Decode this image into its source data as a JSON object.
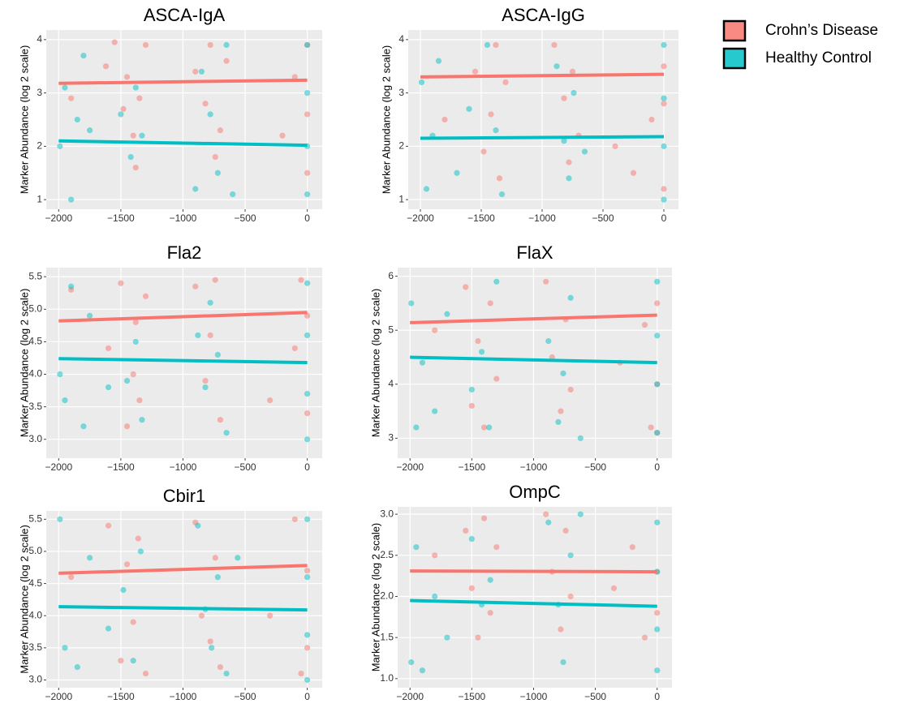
{
  "chart_data": [
    {
      "type": "scatter",
      "title": "ASCA-IgA",
      "y_label": "Marker Abundance (log 2 scale)",
      "xlim": [
        -2100,
        120
      ],
      "ylim": [
        0.82,
        4.18
      ],
      "xticks": [
        {
          "value": -2000,
          "label": "−2000"
        },
        {
          "value": -1500,
          "label": "−1500"
        },
        {
          "value": -1000,
          "label": "−1000"
        },
        {
          "value": -500,
          "label": "−500"
        },
        0
      ],
      "yticks": [
        1,
        2,
        3,
        4
      ],
      "grid": true,
      "series": [
        {
          "name": "Crohn’s Disease",
          "color": "#f8766d",
          "x": [
            -1900,
            -1620,
            -1550,
            -1480,
            -1450,
            -1400,
            -1380,
            -1350,
            -1300,
            -900,
            -820,
            -780,
            -740,
            -700,
            -650,
            -200,
            -100,
            0,
            0,
            0
          ],
          "values": [
            2.9,
            3.5,
            3.95,
            2.7,
            3.3,
            2.2,
            1.6,
            2.9,
            3.9,
            3.4,
            2.8,
            3.9,
            1.8,
            2.3,
            3.6,
            2.2,
            3.3,
            3.9,
            2.6,
            1.5
          ],
          "trend": {
            "x": [
              -2000,
              0
            ],
            "values": [
              3.18,
              3.24
            ]
          }
        },
        {
          "name": "Healthy Control",
          "color": "#00bfc4",
          "x": [
            -1990,
            -1950,
            -1900,
            -1850,
            -1800,
            -1750,
            -1500,
            -1420,
            -1380,
            -1330,
            -900,
            -850,
            -780,
            -720,
            -650,
            -600,
            0,
            0,
            0,
            0
          ],
          "values": [
            2.0,
            3.1,
            1.0,
            2.5,
            3.7,
            2.3,
            2.6,
            1.8,
            3.1,
            2.2,
            1.2,
            3.4,
            2.6,
            1.5,
            3.9,
            1.1,
            3.9,
            3.0,
            2.0,
            1.1
          ],
          "trend": {
            "x": [
              -2000,
              0
            ],
            "values": [
              2.1,
              2.02
            ]
          }
        }
      ]
    },
    {
      "type": "scatter",
      "title": "ASCA-IgG",
      "y_label": "Marker Abundance (log 2 scale)",
      "xlim": [
        -2100,
        120
      ],
      "ylim": [
        0.82,
        4.18
      ],
      "xticks": [
        {
          "value": -2000,
          "label": "−2000"
        },
        {
          "value": -1500,
          "label": "−1500"
        },
        {
          "value": -1000,
          "label": "−1000"
        },
        {
          "value": -500,
          "label": "−500"
        },
        0
      ],
      "yticks": [
        1,
        2,
        3,
        4
      ],
      "grid": true,
      "series": [
        {
          "name": "Crohn’s Disease",
          "color": "#f8766d",
          "x": [
            -1800,
            -1550,
            -1480,
            -1420,
            -1380,
            -1350,
            -1300,
            -900,
            -820,
            -780,
            -750,
            -700,
            -400,
            -250,
            -100,
            0,
            0,
            0
          ],
          "values": [
            2.5,
            3.4,
            1.9,
            2.6,
            3.9,
            1.4,
            3.2,
            3.9,
            2.9,
            1.7,
            3.4,
            2.2,
            2.0,
            1.5,
            2.5,
            3.5,
            2.8,
            1.2
          ],
          "trend": {
            "x": [
              -2000,
              0
            ],
            "values": [
              3.3,
              3.35
            ]
          }
        },
        {
          "name": "Healthy Control",
          "color": "#00bfc4",
          "x": [
            -1990,
            -1950,
            -1900,
            -1850,
            -1700,
            -1600,
            -1450,
            -1380,
            -1330,
            -880,
            -820,
            -780,
            -740,
            -650,
            0,
            0,
            0,
            0
          ],
          "values": [
            3.2,
            1.2,
            2.2,
            3.6,
            1.5,
            2.7,
            3.9,
            2.3,
            1.1,
            3.5,
            2.1,
            1.4,
            3.0,
            1.9,
            3.9,
            2.9,
            2.0,
            1.0
          ],
          "trend": {
            "x": [
              -2000,
              0
            ],
            "values": [
              2.15,
              2.18
            ]
          }
        }
      ]
    },
    {
      "type": "scatter",
      "title": "Fla2",
      "y_label": "Marker Abundance (log 2 scale)",
      "xlim": [
        -2100,
        120
      ],
      "ylim": [
        2.71,
        5.64
      ],
      "xticks": [
        {
          "value": -2000,
          "label": "−2000"
        },
        {
          "value": -1500,
          "label": "−1500"
        },
        {
          "value": -1000,
          "label": "−1000"
        },
        {
          "value": -500,
          "label": "−500"
        },
        0
      ],
      "yticks": [
        {
          "value": 3,
          "label": "3.0"
        },
        3.5,
        {
          "value": 4,
          "label": "4.0"
        },
        4.5,
        {
          "value": 5,
          "label": "5.0"
        },
        5.5
      ],
      "grid": true,
      "series": [
        {
          "name": "Crohn’s Disease",
          "color": "#f8766d",
          "x": [
            -1900,
            -1600,
            -1500,
            -1450,
            -1400,
            -1380,
            -1350,
            -1300,
            -900,
            -820,
            -780,
            -740,
            -700,
            -300,
            -100,
            -50,
            0,
            0
          ],
          "values": [
            5.3,
            4.4,
            5.4,
            3.2,
            4.0,
            4.8,
            3.6,
            5.2,
            5.35,
            3.9,
            4.6,
            5.45,
            3.3,
            3.6,
            4.4,
            5.45,
            4.9,
            3.4
          ],
          "trend": {
            "x": [
              -2000,
              0
            ],
            "values": [
              4.82,
              4.95
            ]
          }
        },
        {
          "name": "Healthy Control",
          "color": "#00bfc4",
          "x": [
            -1990,
            -1950,
            -1900,
            -1800,
            -1750,
            -1600,
            -1450,
            -1380,
            -1330,
            -880,
            -820,
            -780,
            -720,
            -650,
            0,
            0,
            0,
            0
          ],
          "values": [
            4.0,
            3.6,
            5.35,
            3.2,
            4.9,
            3.8,
            3.9,
            4.5,
            3.3,
            4.6,
            3.8,
            5.1,
            4.3,
            3.1,
            5.4,
            4.6,
            3.7,
            3.0
          ],
          "trend": {
            "x": [
              -2000,
              0
            ],
            "values": [
              4.24,
              4.18
            ]
          }
        }
      ]
    },
    {
      "type": "scatter",
      "title": "FlaX",
      "y_label": "Marker Abundance (log 2 scale)",
      "xlim": [
        -2100,
        120
      ],
      "ylim": [
        2.63,
        6.16
      ],
      "xticks": [
        {
          "value": -2000,
          "label": "−2000"
        },
        {
          "value": -1500,
          "label": "−1500"
        },
        {
          "value": -1000,
          "label": "−1000"
        },
        {
          "value": -500,
          "label": "−500"
        },
        0
      ],
      "yticks": [
        3,
        4,
        5,
        6
      ],
      "grid": true,
      "series": [
        {
          "name": "Crohn’s Disease",
          "color": "#f8766d",
          "x": [
            -1800,
            -1550,
            -1500,
            -1450,
            -1400,
            -1350,
            -1300,
            -900,
            -850,
            -780,
            -740,
            -700,
            -300,
            -100,
            -50,
            0,
            0,
            0
          ],
          "values": [
            5.0,
            5.8,
            3.6,
            4.8,
            3.2,
            5.5,
            4.1,
            5.9,
            4.5,
            3.5,
            5.2,
            3.9,
            4.4,
            5.1,
            3.2,
            5.5,
            4.0,
            3.1
          ],
          "trend": {
            "x": [
              -2000,
              0
            ],
            "values": [
              5.14,
              5.28
            ]
          }
        },
        {
          "name": "Healthy Control",
          "color": "#00bfc4",
          "x": [
            -1990,
            -1950,
            -1900,
            -1800,
            -1700,
            -1500,
            -1420,
            -1360,
            -1300,
            -880,
            -800,
            -760,
            -700,
            -620,
            0,
            0,
            0,
            0
          ],
          "values": [
            5.5,
            3.2,
            4.4,
            3.5,
            5.3,
            3.9,
            4.6,
            3.2,
            5.9,
            4.8,
            3.3,
            4.2,
            5.6,
            3.0,
            5.9,
            4.9,
            4.0,
            3.1
          ],
          "trend": {
            "x": [
              -2000,
              0
            ],
            "values": [
              4.5,
              4.4
            ]
          }
        }
      ]
    },
    {
      "type": "scatter",
      "title": "Cbir1",
      "y_label": "Marker Abundance (log 2 scale)",
      "xlim": [
        -2100,
        120
      ],
      "ylim": [
        2.88,
        5.63
      ],
      "xticks": [
        {
          "value": -2000,
          "label": "−2000"
        },
        {
          "value": -1500,
          "label": "−1500"
        },
        {
          "value": -1000,
          "label": "−1000"
        },
        {
          "value": -500,
          "label": "−500"
        },
        0
      ],
      "yticks": [
        {
          "value": 3,
          "label": "3.0"
        },
        3.5,
        {
          "value": 4,
          "label": "4.0"
        },
        4.5,
        {
          "value": 5,
          "label": "5.0"
        },
        5.5
      ],
      "grid": true,
      "series": [
        {
          "name": "Crohn’s Disease",
          "color": "#f8766d",
          "x": [
            -1900,
            -1600,
            -1500,
            -1450,
            -1400,
            -1360,
            -1300,
            -900,
            -850,
            -780,
            -740,
            -700,
            -300,
            -100,
            -50,
            0,
            0
          ],
          "values": [
            4.6,
            5.4,
            3.3,
            4.8,
            3.9,
            5.2,
            3.1,
            5.45,
            4.0,
            3.6,
            4.9,
            3.2,
            4.0,
            5.5,
            3.1,
            4.7,
            3.5
          ],
          "trend": {
            "x": [
              -2000,
              0
            ],
            "values": [
              4.66,
              4.78
            ]
          }
        },
        {
          "name": "Healthy Control",
          "color": "#00bfc4",
          "x": [
            -1990,
            -1950,
            -1850,
            -1750,
            -1600,
            -1480,
            -1400,
            -1340,
            -880,
            -820,
            -770,
            -720,
            -650,
            -560,
            0,
            0,
            0,
            0
          ],
          "values": [
            5.5,
            3.5,
            3.2,
            4.9,
            3.8,
            4.4,
            3.3,
            5.0,
            5.4,
            4.1,
            3.5,
            4.6,
            3.1,
            4.9,
            5.5,
            4.6,
            3.7,
            3.0
          ],
          "trend": {
            "x": [
              -2000,
              0
            ],
            "values": [
              4.14,
              4.09
            ]
          }
        }
      ]
    },
    {
      "type": "scatter",
      "title": "OmpC",
      "y_label": "Marker Abundance (log 2 scale)",
      "xlim": [
        -2100,
        120
      ],
      "ylim": [
        0.89,
        3.09
      ],
      "xticks": [
        {
          "value": -2000,
          "label": "−2000"
        },
        {
          "value": -1500,
          "label": "−1500"
        },
        {
          "value": -1000,
          "label": "−1000"
        },
        {
          "value": -500,
          "label": "−500"
        },
        0
      ],
      "yticks": [
        {
          "value": 1,
          "label": "1.0"
        },
        1.5,
        {
          "value": 2,
          "label": "2.0"
        },
        2.5,
        {
          "value": 3,
          "label": "3.0"
        }
      ],
      "grid": true,
      "series": [
        {
          "name": "Crohn’s Disease",
          "color": "#f8766d",
          "x": [
            -1800,
            -1550,
            -1500,
            -1450,
            -1400,
            -1350,
            -1300,
            -900,
            -850,
            -780,
            -740,
            -700,
            -350,
            -200,
            -100,
            0,
            0
          ],
          "values": [
            2.5,
            2.8,
            2.1,
            1.5,
            2.95,
            1.8,
            2.6,
            3.0,
            2.3,
            1.6,
            2.8,
            2.0,
            2.1,
            2.6,
            1.5,
            2.3,
            1.8
          ],
          "trend": {
            "x": [
              -2000,
              0
            ],
            "values": [
              2.31,
              2.3
            ]
          }
        },
        {
          "name": "Healthy Control",
          "color": "#00bfc4",
          "x": [
            -1990,
            -1950,
            -1900,
            -1800,
            -1700,
            -1500,
            -1420,
            -1350,
            -880,
            -800,
            -760,
            -700,
            -620,
            0,
            0,
            0,
            0
          ],
          "values": [
            1.2,
            2.6,
            1.1,
            2.0,
            1.5,
            2.7,
            1.9,
            2.2,
            2.9,
            1.9,
            1.2,
            2.5,
            3.0,
            2.9,
            2.3,
            1.6,
            1.1
          ],
          "trend": {
            "x": [
              -2000,
              0
            ],
            "values": [
              1.95,
              1.88
            ]
          }
        }
      ]
    }
  ]
}
